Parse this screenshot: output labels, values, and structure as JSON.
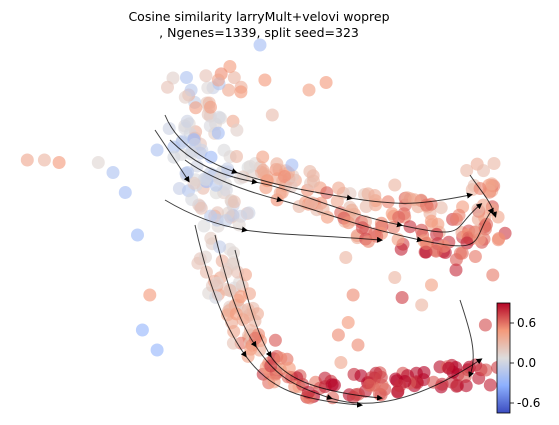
{
  "chart_data": {
    "type": "scatter",
    "title_line1": "Cosine similarity larryMult+velovi woprep",
    "title_line2": ", Ngenes=1339, split seed=323",
    "colormap": "coolwarm",
    "colorbar": {
      "vmin": -0.75,
      "vmax": 0.9,
      "ticks": [
        {
          "value": 0.6,
          "label": "0.6"
        },
        {
          "value": 0.0,
          "label": "0.0"
        },
        {
          "value": -0.6,
          "label": "-0.6"
        }
      ]
    },
    "streamlines": true,
    "axes_visible": false,
    "points": [
      [
        -0.95,
        0.88,
        0.4
      ],
      [
        -0.88,
        0.88,
        0.3
      ],
      [
        -0.82,
        0.87,
        0.5
      ],
      [
        -0.66,
        0.87,
        0.05
      ],
      [
        -0.6,
        0.83,
        -0.3
      ],
      [
        -0.55,
        0.75,
        -0.35
      ],
      [
        -0.42,
        0.92,
        -0.3
      ],
      [
        -0.5,
        0.58,
        -0.4
      ],
      [
        -0.45,
        0.34,
        0.5
      ],
      [
        -0.48,
        0.2,
        -0.45
      ],
      [
        -0.42,
        0.12,
        -0.45
      ],
      [
        -0.3,
        1.21,
        -0.3
      ],
      [
        -0.17,
        1.2,
        0.4
      ],
      [
        0.0,
        1.34,
        -0.35
      ],
      [
        0.02,
        1.2,
        0.5
      ],
      [
        0.05,
        1.06,
        0.25
      ],
      [
        0.2,
        1.16,
        0.45
      ],
      [
        0.27,
        1.19,
        0.5
      ],
      [
        0.13,
        0.86,
        -0.35
      ],
      [
        0.55,
        0.78,
        0.3
      ],
      [
        0.35,
        0.49,
        0.3
      ],
      [
        0.38,
        0.34,
        0.55
      ],
      [
        0.36,
        0.23,
        0.5
      ],
      [
        0.32,
        0.18,
        0.55
      ],
      [
        0.4,
        0.14,
        0.55
      ],
      [
        0.33,
        0.07,
        0.4
      ],
      [
        0.55,
        0.41,
        0.3
      ],
      [
        0.58,
        0.33,
        0.8
      ],
      [
        0.7,
        0.38,
        0.45
      ],
      [
        0.66,
        0.3,
        0.3
      ],
      [
        0.8,
        0.44,
        0.85
      ],
      [
        0.95,
        0.42,
        0.6
      ],
      [
        0.92,
        0.22,
        0.75
      ],
      [
        0.88,
        0.06,
        0.85
      ],
      [
        0.94,
        -0.02,
        0.9
      ],
      [
        0.97,
        0.05,
        0.8
      ]
    ]
  }
}
